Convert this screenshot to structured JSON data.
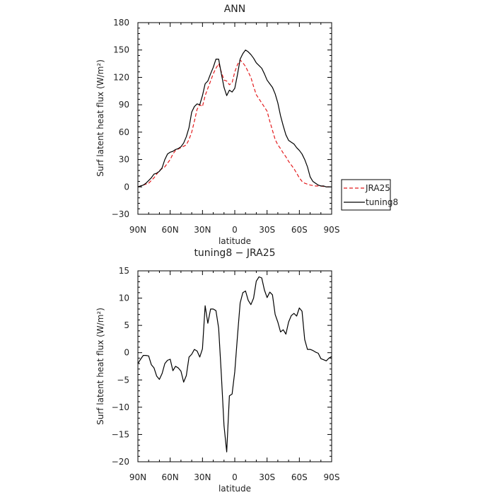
{
  "chart_data": [
    {
      "type": "line",
      "title": "ANN",
      "xlabel": "latitude",
      "ylabel": "Surf latent heat flux (W/m²)",
      "xlim": [
        90,
        -90
      ],
      "ylim": [
        -30,
        180
      ],
      "x_ticks": [
        90,
        60,
        30,
        0,
        -30,
        -60,
        -90
      ],
      "x_tick_labels": [
        "90N",
        "60N",
        "30N",
        "0",
        "30S",
        "60S",
        "90S"
      ],
      "y_ticks": [
        -30,
        0,
        30,
        60,
        90,
        120,
        150,
        180
      ],
      "y_tick_labels": [
        "−30",
        "0",
        "30",
        "60",
        "90",
        "120",
        "150",
        "180"
      ],
      "grid": false,
      "legend_position": "right",
      "series": [
        {
          "name": "JRA25",
          "color": "#e31a1c",
          "dash": "dashed",
          "x": [
            90,
            85,
            80,
            75,
            70,
            65,
            60,
            57.5,
            55,
            50,
            45,
            42.5,
            40,
            37.5,
            35,
            32.5,
            30,
            27.5,
            25,
            22.5,
            20,
            17.5,
            15,
            12.5,
            10,
            7.5,
            5,
            2.5,
            0,
            -2.5,
            -5,
            -7.5,
            -10,
            -12.5,
            -15,
            -17.5,
            -20,
            -25,
            -30,
            -32.5,
            -35,
            -37.5,
            -40,
            -42.5,
            -45,
            -47.5,
            -50,
            -55,
            -60,
            -62.5,
            -65,
            -70,
            -75,
            -80,
            -85,
            -90
          ],
          "y": [
            0,
            2,
            4,
            10,
            18,
            22,
            30,
            36,
            40,
            43,
            46,
            52,
            60,
            72,
            85,
            90,
            88,
            100,
            108,
            116,
            124,
            130,
            135,
            126,
            117,
            116,
            112,
            114,
            126,
            134,
            139,
            136,
            132,
            126,
            120,
            110,
            101,
            92,
            83,
            72,
            62,
            52,
            46,
            42,
            37,
            33,
            28,
            20,
            10,
            6,
            4,
            2,
            1,
            1,
            0,
            0
          ]
        },
        {
          "name": "tuning8",
          "color": "#000000",
          "dash": "solid",
          "x": [
            90,
            87.5,
            85,
            82.5,
            80,
            77.5,
            75,
            72.5,
            70,
            67.5,
            65,
            62.5,
            60,
            57.5,
            55,
            52.5,
            50,
            47.5,
            45,
            42.5,
            40,
            37.5,
            35,
            32.5,
            30,
            27.5,
            25,
            22.5,
            20,
            17.5,
            15,
            12.5,
            10,
            7.5,
            5,
            2.5,
            0,
            -2.5,
            -5,
            -7.5,
            -10,
            -12.5,
            -15,
            -17.5,
            -20,
            -22.5,
            -25,
            -27.5,
            -30,
            -32.5,
            -35,
            -37.5,
            -40,
            -42.5,
            -45,
            -47.5,
            -50,
            -52.5,
            -55,
            -57.5,
            -60,
            -62.5,
            -65,
            -67.5,
            -70,
            -72.5,
            -75,
            -77.5,
            -80,
            -82.5,
            -85,
            -87.5,
            -90
          ],
          "y": [
            0,
            1,
            2,
            4,
            7,
            10,
            14,
            15,
            17,
            21,
            30,
            36,
            38,
            39,
            41,
            42,
            44,
            48,
            55,
            65,
            82,
            88,
            91,
            90,
            100,
            113,
            116,
            124,
            131,
            140,
            140,
            124,
            109,
            100,
            106,
            104,
            108,
            123,
            140,
            146,
            150,
            148,
            145,
            141,
            136,
            133,
            130,
            124,
            117,
            113,
            109,
            102,
            92,
            78,
            67,
            57,
            51,
            49,
            47,
            43,
            40,
            36,
            30,
            22,
            11,
            6,
            4,
            2,
            1,
            1,
            0,
            0,
            0
          ]
        }
      ]
    },
    {
      "type": "line",
      "title": "tuning8 − JRA25",
      "xlabel": "latitude",
      "ylabel": "Surf latent heat flux (W/m²)",
      "xlim": [
        90,
        -90
      ],
      "ylim": [
        -20,
        15
      ],
      "x_ticks": [
        90,
        60,
        30,
        0,
        -30,
        -60,
        -90
      ],
      "x_tick_labels": [
        "90N",
        "60N",
        "30N",
        "0",
        "30S",
        "60S",
        "90S"
      ],
      "y_ticks": [
        -20,
        -15,
        -10,
        -5,
        0,
        5,
        10,
        15
      ],
      "y_tick_labels": [
        "−20",
        "−15",
        "−10",
        "−5",
        "0",
        "5",
        "10",
        "15"
      ],
      "grid": false,
      "series": [
        {
          "color": "#000000",
          "dash": "solid",
          "x": [
            90,
            87.5,
            85,
            82.5,
            80,
            77.5,
            75,
            72.5,
            70,
            67.5,
            65,
            62.5,
            60,
            57.5,
            55,
            52.5,
            50,
            47.5,
            45,
            42.5,
            40,
            37.5,
            35,
            32.5,
            30,
            27.5,
            25,
            22.5,
            20,
            17.5,
            15,
            12.5,
            10,
            7.5,
            5,
            2.5,
            0,
            -2.5,
            -5,
            -7.5,
            -10,
            -12.5,
            -15,
            -17.5,
            -20,
            -22.5,
            -25,
            -27.5,
            -30,
            -32.5,
            -35,
            -37.5,
            -40,
            -42.5,
            -45,
            -47.5,
            -50,
            -52.5,
            -55,
            -57.5,
            -60,
            -62.5,
            -65,
            -67.5,
            -70,
            -72.5,
            -75,
            -77.5,
            -80,
            -82.5,
            -85,
            -87.5,
            -90
          ],
          "y": [
            -2,
            -1.2,
            -0.5,
            -0.5,
            -0.6,
            -2.2,
            -2.8,
            -4.3,
            -4.9,
            -3.8,
            -2.0,
            -1.4,
            -1.2,
            -3.3,
            -2.5,
            -2.8,
            -3.4,
            -5.4,
            -4.2,
            -0.8,
            -0.3,
            0.6,
            0.3,
            -0.8,
            0.7,
            8.6,
            5.4,
            8.0,
            8.0,
            7.7,
            4.5,
            -4.0,
            -13.4,
            -18.2,
            -7.9,
            -7.6,
            -3.5,
            3.0,
            9.1,
            11.0,
            11.3,
            9.6,
            8.8,
            10.0,
            13.1,
            13.9,
            13.7,
            11.5,
            10.1,
            11.1,
            10.6,
            7.0,
            5.6,
            3.8,
            4.2,
            3.4,
            5.6,
            6.8,
            7.2,
            6.7,
            8.2,
            7.6,
            2.4,
            0.6,
            0.6,
            0.4,
            0.1,
            -0.1,
            -1.1,
            -1.3,
            -1.5,
            -1.0,
            -0.7
          ]
        }
      ]
    }
  ]
}
